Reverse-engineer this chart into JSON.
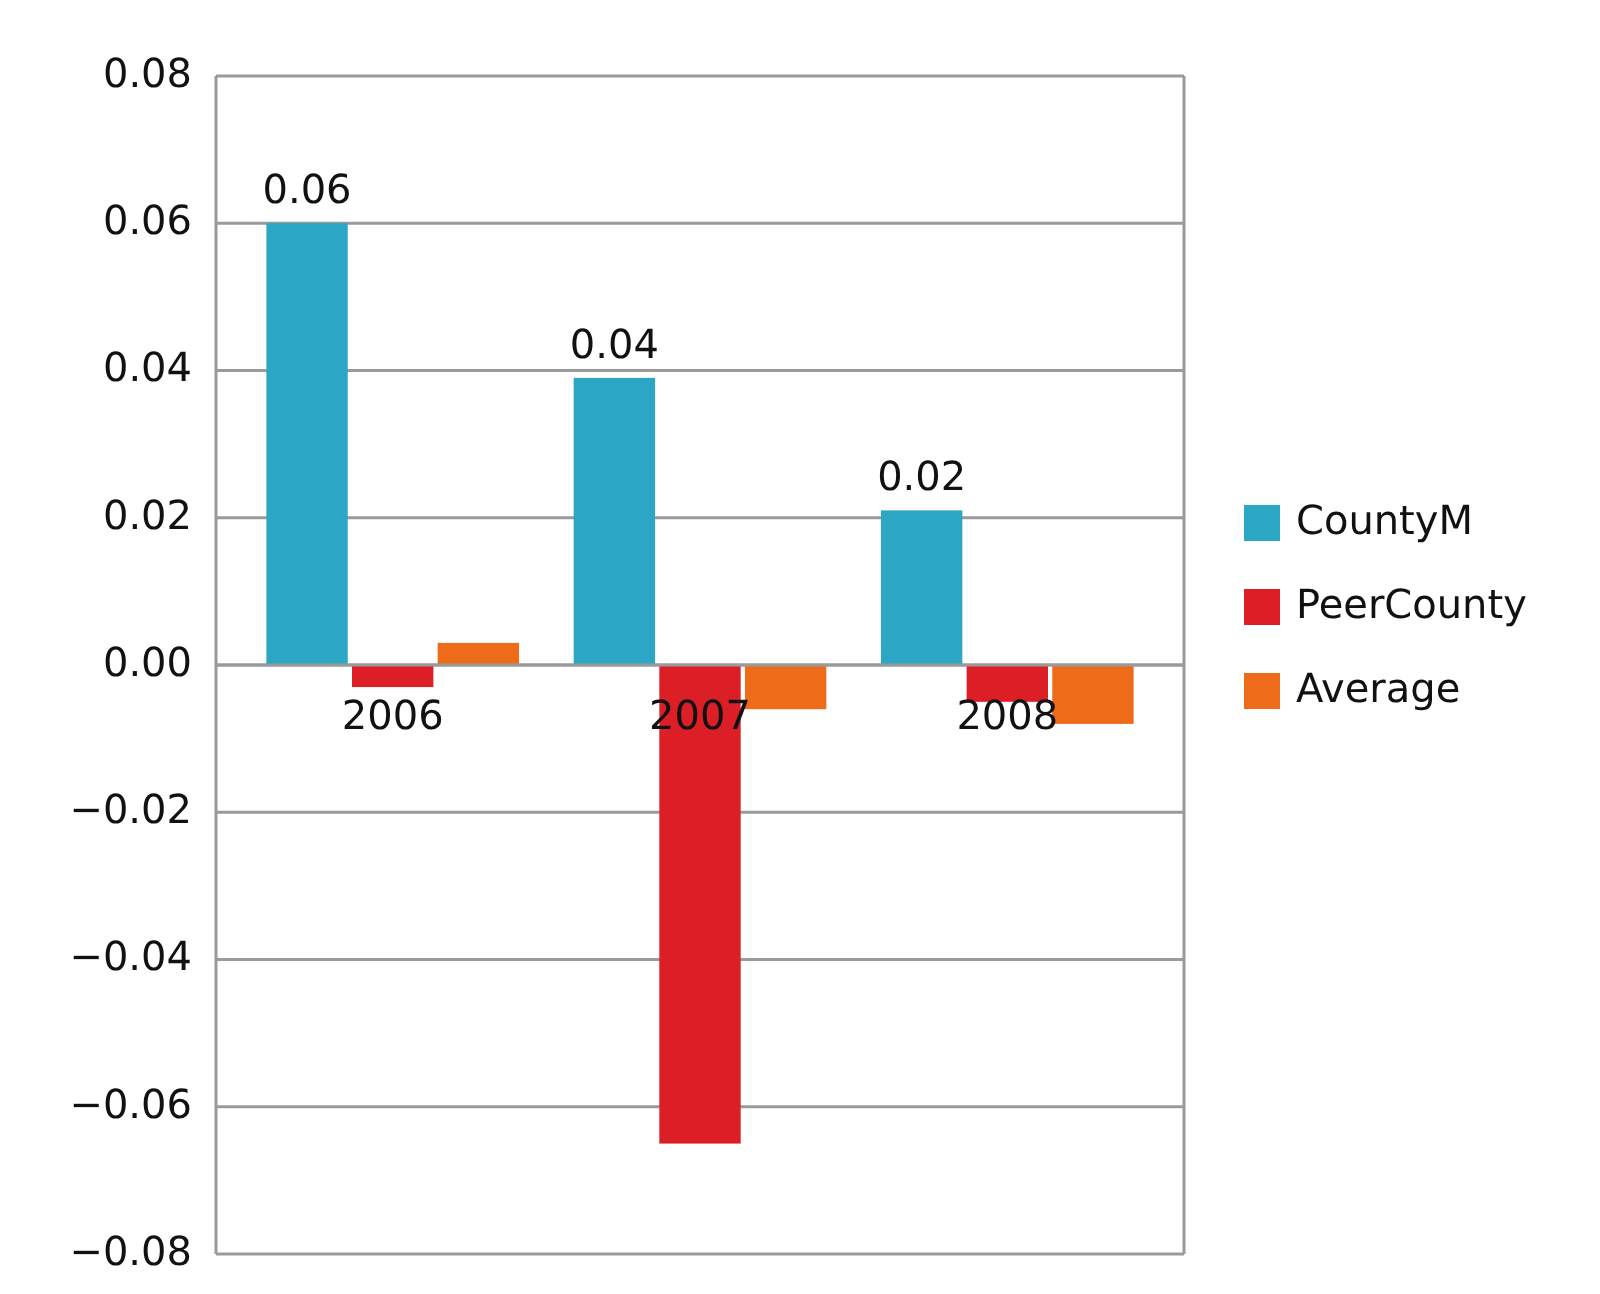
{
  "chart_data": {
    "type": "bar",
    "categories": [
      "2006",
      "2007",
      "2008"
    ],
    "series": [
      {
        "name": "CountyM",
        "color": "#2ba6c4",
        "values": [
          0.06,
          0.039,
          0.021
        ],
        "value_labels": [
          "0.06",
          "0.04",
          "0.02"
        ]
      },
      {
        "name": "PeerCounty",
        "color": "#dc1f26",
        "values": [
          -0.003,
          -0.065,
          -0.005
        ]
      },
      {
        "name": "Average",
        "color": "#ee6b1a",
        "values": [
          0.003,
          -0.006,
          -0.008
        ]
      }
    ],
    "ylim": [
      -0.08,
      0.08
    ],
    "yticks": [
      {
        "value": 0.08,
        "label": "0.08"
      },
      {
        "value": 0.06,
        "label": "0.06"
      },
      {
        "value": 0.04,
        "label": "0.04"
      },
      {
        "value": 0.02,
        "label": "0.02"
      },
      {
        "value": 0,
        "label": "0.00"
      },
      {
        "value": -0.02,
        "label": "−0.02"
      },
      {
        "value": -0.04,
        "label": "−0.04"
      },
      {
        "value": -0.06,
        "label": "−0.06"
      },
      {
        "value": -0.08,
        "label": "−0.08"
      }
    ],
    "grid": true,
    "legend": "right"
  }
}
